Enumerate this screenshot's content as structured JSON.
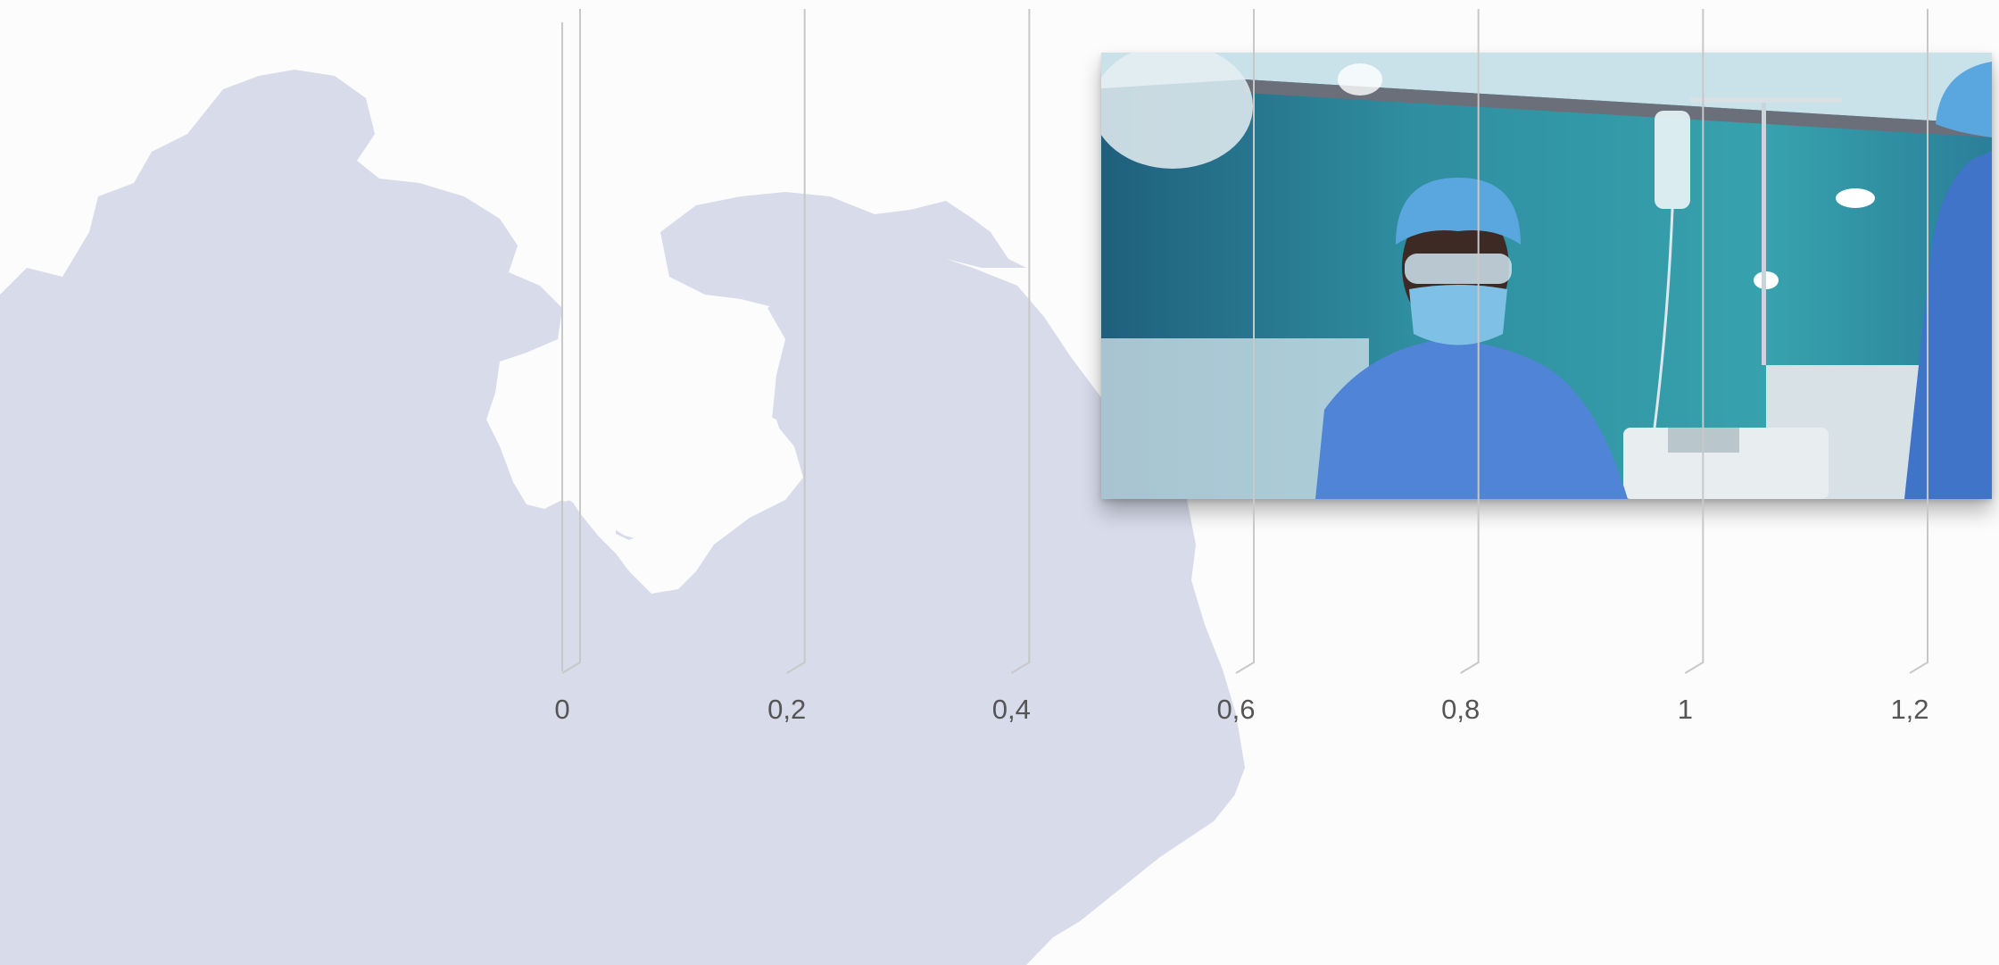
{
  "background": {
    "map_color": "#d7dbea",
    "page_color": "#fcfcfc"
  },
  "photo": {
    "subject": "surgeon-in-operating-room",
    "scrub_color": "#4f84d6",
    "wall_color": "#2f8ea0"
  },
  "chart_data": {
    "type": "bar",
    "orientation": "horizontal",
    "categories": [],
    "series": [],
    "xlim": [
      0,
      1.2
    ],
    "x_ticks": [
      0,
      0.2,
      0.4,
      0.6,
      0.8,
      1,
      1.2
    ],
    "x_tick_labels": [
      "0",
      "0,2",
      "0,4",
      "0,6",
      "0,8",
      "1",
      "1,2"
    ],
    "grid": true,
    "gridline_color": "#c8c8c8",
    "tick_label_color": "#555555",
    "title": "",
    "xlabel": "",
    "ylabel": ""
  }
}
